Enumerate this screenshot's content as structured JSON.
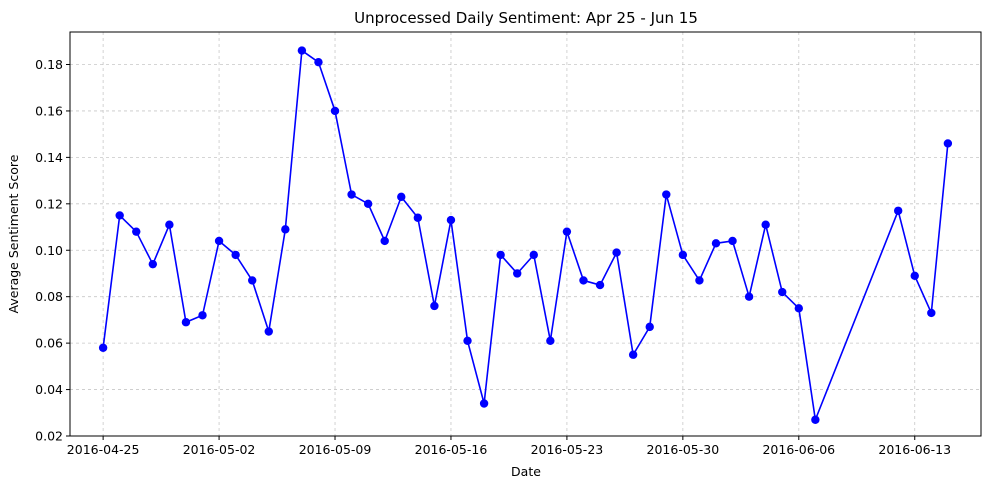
{
  "chart_data": {
    "type": "line",
    "title": "Unprocessed Daily Sentiment: Apr 25 - Jun 15",
    "xlabel": "Date",
    "ylabel": "Average Sentiment Score",
    "x_ticks": [
      "2016-04-25",
      "2016-05-02",
      "2016-05-09",
      "2016-05-16",
      "2016-05-23",
      "2016-05-30",
      "2016-06-06",
      "2016-06-13"
    ],
    "y_ticks": [
      0.02,
      0.04,
      0.06,
      0.08,
      0.1,
      0.12,
      0.14,
      0.16,
      0.18
    ],
    "y_tick_labels": [
      "0.02",
      "0.04",
      "0.06",
      "0.08",
      "0.10",
      "0.12",
      "0.14",
      "0.16",
      "0.18"
    ],
    "xlim": [
      "2016-04-23",
      "2016-06-17"
    ],
    "ylim": [
      0.02,
      0.194
    ],
    "grid": true,
    "line_color": "#0000ff",
    "marker_color": "#0000ff",
    "x": [
      "2016-04-25",
      "2016-04-26",
      "2016-04-27",
      "2016-04-28",
      "2016-04-29",
      "2016-04-30",
      "2016-05-01",
      "2016-05-02",
      "2016-05-03",
      "2016-05-04",
      "2016-05-05",
      "2016-05-06",
      "2016-05-07",
      "2016-05-08",
      "2016-05-09",
      "2016-05-10",
      "2016-05-11",
      "2016-05-12",
      "2016-05-13",
      "2016-05-14",
      "2016-05-15",
      "2016-05-16",
      "2016-05-17",
      "2016-05-18",
      "2016-05-19",
      "2016-05-20",
      "2016-05-21",
      "2016-05-22",
      "2016-05-23",
      "2016-05-24",
      "2016-05-25",
      "2016-05-26",
      "2016-05-27",
      "2016-05-28",
      "2016-05-29",
      "2016-05-30",
      "2016-05-31",
      "2016-06-01",
      "2016-06-02",
      "2016-06-03",
      "2016-06-04",
      "2016-06-05",
      "2016-06-06",
      "2016-06-07",
      "2016-06-12",
      "2016-06-13",
      "2016-06-14",
      "2016-06-15"
    ],
    "y": [
      0.058,
      0.115,
      0.108,
      0.094,
      0.111,
      0.069,
      0.072,
      0.104,
      0.098,
      0.087,
      0.065,
      0.109,
      0.186,
      0.181,
      0.16,
      0.124,
      0.12,
      0.104,
      0.123,
      0.114,
      0.076,
      0.113,
      0.061,
      0.034,
      0.098,
      0.09,
      0.098,
      0.061,
      0.108,
      0.087,
      0.085,
      0.099,
      0.055,
      0.067,
      0.124,
      0.098,
      0.087,
      0.103,
      0.104,
      0.08,
      0.111,
      0.082,
      0.075,
      0.027,
      0.117,
      0.089,
      0.073,
      0.146
    ]
  }
}
